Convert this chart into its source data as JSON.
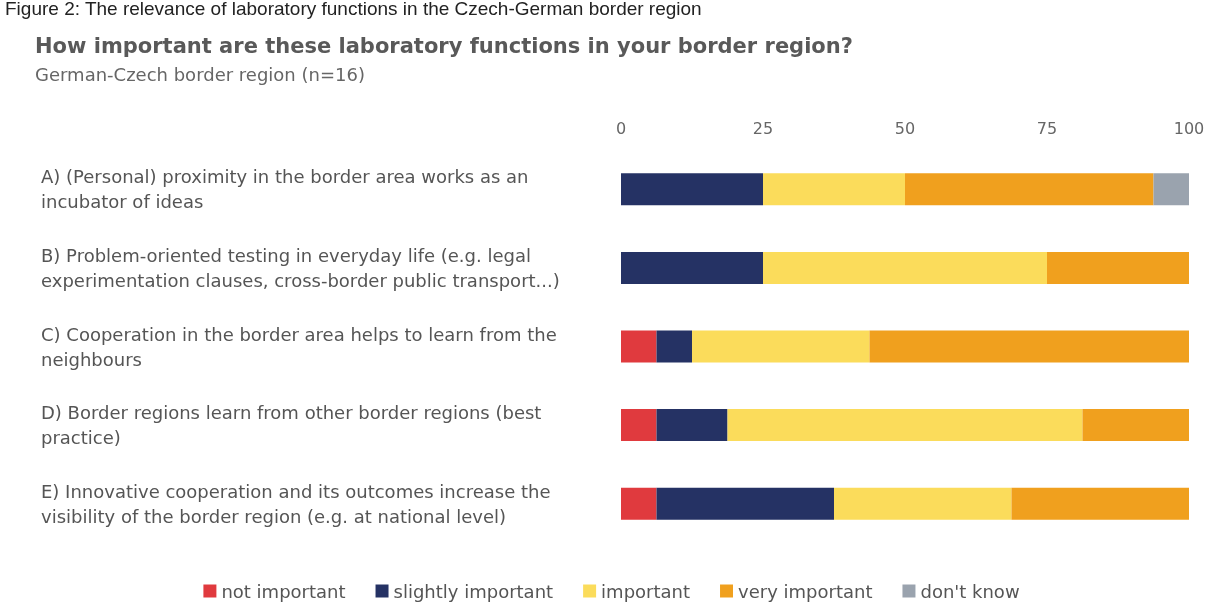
{
  "chart_data": {
    "type": "bar",
    "orientation": "horizontal",
    "stacked": true,
    "title": "How important are these laboratory functions in your border region?",
    "subtitle": "German-Czech border region (n=16)",
    "annotations": [
      "Figure 2: The relevance of laboratory functions in the Czech-German border region"
    ],
    "categories": [
      "A) (Personal) proximity in the border area works as an incubator of ideas",
      "B) Problem-oriented testing in everyday life (e.g. legal experimentation clauses, cross-border public transport...)",
      "C) Cooperation in the border area helps to learn from the neighbours",
      "D) Border regions learn from other border regions (best practice)",
      "E) Innovative cooperation and its outcomes increase the visibility of the border region (e.g. at national level)"
    ],
    "series": [
      {
        "name": "not important",
        "color": "#e03a3e",
        "values": [
          0,
          0,
          6.25,
          6.25,
          6.25
        ]
      },
      {
        "name": "slightly important",
        "color": "#253264",
        "values": [
          25,
          25,
          6.25,
          12.5,
          31.25
        ]
      },
      {
        "name": "important",
        "color": "#fbdc5b",
        "values": [
          25,
          50,
          31.25,
          62.5,
          31.25
        ]
      },
      {
        "name": "very important",
        "color": "#f0a01e",
        "values": [
          43.75,
          25,
          56.25,
          18.75,
          31.25
        ]
      },
      {
        "name": "don't know",
        "color": "#9aa3ae",
        "values": [
          6.25,
          0,
          0,
          0,
          0
        ]
      }
    ],
    "xlim": [
      0,
      100
    ],
    "xticks": [
      0,
      25,
      50,
      75,
      100
    ],
    "grid": false,
    "legend": "bottom"
  }
}
